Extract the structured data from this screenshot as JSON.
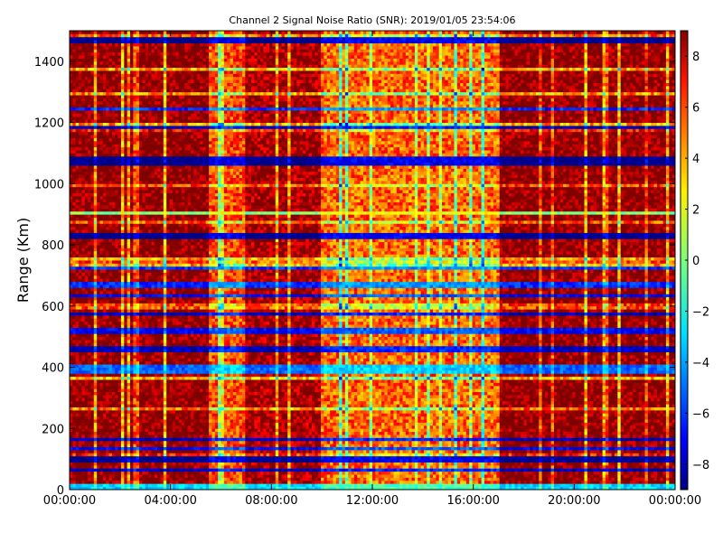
{
  "chart_data": {
    "type": "heatmap",
    "title": "Channel 2 Signal Noise Ratio (SNR): 2019/01/05 23:54:06",
    "xlabel": "",
    "ylabel": "Range (Km)",
    "x_tick_labels": [
      "00:00:00",
      "04:00:00",
      "08:00:00",
      "12:00:00",
      "16:00:00",
      "20:00:00",
      "00:00:00"
    ],
    "x_range_hours": [
      0,
      24
    ],
    "y_ticks": [
      0,
      200,
      400,
      600,
      800,
      1000,
      1200,
      1400
    ],
    "y_range": [
      0,
      1500
    ],
    "colorbar_ticks": [
      -8,
      -6,
      -4,
      -2,
      0,
      2,
      4,
      6,
      8
    ],
    "colorbar_range": [
      -9,
      9
    ],
    "colormap": "jet",
    "grid": false,
    "time_columns": 200,
    "range_rows": 150,
    "column_bias": [
      {
        "from_hour": 0.0,
        "to_hour": 5.5,
        "bias": 1.0
      },
      {
        "from_hour": 5.5,
        "to_hour": 7.0,
        "bias": -2.5
      },
      {
        "from_hour": 7.0,
        "to_hour": 10.0,
        "bias": 0.5
      },
      {
        "from_hour": 10.0,
        "to_hour": 17.0,
        "bias": -3.0
      },
      {
        "from_hour": 17.0,
        "to_hour": 24.0,
        "bias": 1.0
      }
    ],
    "low_snr_bands_km": [
      {
        "from": 0,
        "to": 25,
        "value": -3
      },
      {
        "from": 60,
        "to": 75,
        "value": -8
      },
      {
        "from": 95,
        "to": 115,
        "value": -9
      },
      {
        "from": 130,
        "to": 145,
        "value": -7
      },
      {
        "from": 160,
        "to": 175,
        "value": -8
      },
      {
        "from": 380,
        "to": 415,
        "value": -5
      },
      {
        "from": 450,
        "to": 470,
        "value": -8
      },
      {
        "from": 510,
        "to": 530,
        "value": -7
      },
      {
        "from": 570,
        "to": 580,
        "value": -8
      },
      {
        "from": 630,
        "to": 645,
        "value": -7
      },
      {
        "from": 660,
        "to": 680,
        "value": -6
      },
      {
        "from": 720,
        "to": 735,
        "value": -6
      },
      {
        "from": 820,
        "to": 840,
        "value": -9
      },
      {
        "from": 900,
        "to": 910,
        "value": 0
      },
      {
        "from": 1065,
        "to": 1090,
        "value": -9
      },
      {
        "from": 1180,
        "to": 1195,
        "value": -8
      },
      {
        "from": 1245,
        "to": 1255,
        "value": -6
      },
      {
        "from": 1465,
        "to": 1480,
        "value": -9
      }
    ],
    "background_snr": 8
  }
}
